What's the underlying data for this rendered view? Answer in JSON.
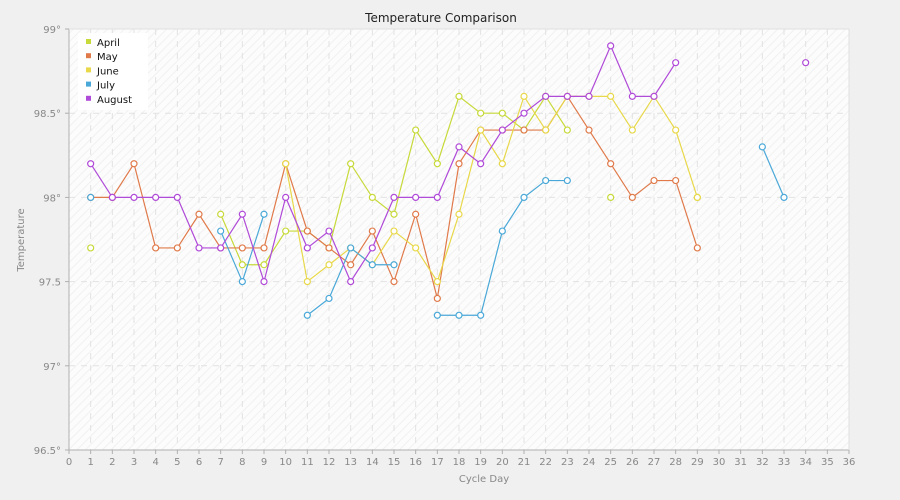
{
  "chart_data": {
    "type": "line",
    "title": "Temperature Comparison",
    "xlabel": "Cycle Day",
    "ylabel": "Temperature",
    "xlim": [
      0,
      36
    ],
    "ylim": [
      96.5,
      99
    ],
    "x_ticks": [
      0,
      1,
      2,
      3,
      4,
      5,
      6,
      7,
      8,
      9,
      10,
      11,
      12,
      13,
      14,
      15,
      16,
      17,
      18,
      19,
      20,
      21,
      22,
      23,
      24,
      25,
      26,
      27,
      28,
      29,
      30,
      31,
      32,
      33,
      34,
      35,
      36
    ],
    "y_ticks": [
      {
        "value": 96.5,
        "label": "96.5°"
      },
      {
        "value": 97,
        "label": "97°"
      },
      {
        "value": 97.5,
        "label": "97.5"
      },
      {
        "value": 98,
        "label": "98°"
      },
      {
        "value": 98.5,
        "label": "98.5°"
      },
      {
        "value": 99,
        "label": "99°"
      }
    ],
    "grid": true,
    "legend_position": "top-left",
    "series": [
      {
        "name": "April",
        "color": "#c8d93a",
        "points": [
          [
            1,
            97.7
          ],
          null,
          [
            7,
            97.9
          ],
          [
            8,
            97.6
          ],
          [
            9,
            97.6
          ],
          [
            10,
            97.8
          ],
          [
            11,
            97.8
          ],
          [
            12,
            97.7
          ],
          [
            13,
            98.2
          ],
          [
            14,
            98.0
          ],
          [
            15,
            97.9
          ],
          [
            16,
            98.4
          ],
          [
            17,
            98.2
          ],
          [
            18,
            98.6
          ],
          [
            19,
            98.5
          ],
          [
            20,
            98.5
          ],
          [
            21,
            98.4
          ],
          [
            22,
            98.6
          ],
          [
            23,
            98.4
          ],
          null,
          [
            25,
            98.0
          ],
          null,
          [
            29,
            98.0
          ]
        ]
      },
      {
        "name": "May",
        "color": "#e07a4a",
        "points": [
          [
            1,
            98.0
          ],
          [
            2,
            98.0
          ],
          [
            3,
            98.2
          ],
          [
            4,
            97.7
          ],
          [
            5,
            97.7
          ],
          [
            6,
            97.9
          ],
          [
            7,
            97.7
          ],
          [
            8,
            97.7
          ],
          [
            9,
            97.7
          ],
          [
            10,
            98.2
          ],
          [
            11,
            97.8
          ],
          [
            12,
            97.7
          ],
          [
            13,
            97.6
          ],
          [
            14,
            97.8
          ],
          [
            15,
            97.5
          ],
          [
            16,
            97.9
          ],
          [
            17,
            97.4
          ],
          [
            18,
            98.2
          ],
          [
            19,
            98.4
          ],
          [
            20,
            98.4
          ],
          [
            21,
            98.4
          ],
          [
            22,
            98.4
          ],
          [
            23,
            98.6
          ],
          [
            24,
            98.4
          ],
          [
            25,
            98.2
          ],
          [
            26,
            98.0
          ],
          [
            27,
            98.1
          ],
          [
            28,
            98.1
          ],
          [
            29,
            97.7
          ]
        ]
      },
      {
        "name": "June",
        "color": "#e8d84a",
        "points": [
          [
            10,
            98.2
          ],
          [
            11,
            97.5
          ],
          [
            12,
            97.6
          ],
          [
            13,
            97.7
          ],
          [
            14,
            97.6
          ],
          [
            15,
            97.8
          ],
          [
            16,
            97.7
          ],
          [
            17,
            97.5
          ],
          [
            18,
            97.9
          ],
          [
            19,
            98.4
          ],
          [
            20,
            98.2
          ],
          [
            21,
            98.6
          ],
          [
            22,
            98.4
          ],
          [
            23,
            98.6
          ],
          [
            24,
            98.6
          ],
          [
            25,
            98.6
          ],
          [
            26,
            98.4
          ],
          [
            27,
            98.6
          ],
          [
            28,
            98.4
          ],
          [
            29,
            98.0
          ]
        ]
      },
      {
        "name": "July",
        "color": "#4aa8d8",
        "points": [
          [
            1,
            98.0
          ],
          null,
          [
            7,
            97.8
          ],
          [
            8,
            97.5
          ],
          [
            9,
            97.9
          ],
          null,
          [
            11,
            97.3
          ],
          [
            12,
            97.4
          ],
          [
            13,
            97.7
          ],
          [
            14,
            97.6
          ],
          [
            15,
            97.6
          ],
          null,
          [
            17,
            97.3
          ],
          [
            18,
            97.3
          ],
          [
            19,
            97.3
          ],
          [
            20,
            97.8
          ],
          [
            21,
            98.0
          ],
          [
            22,
            98.1
          ],
          [
            23,
            98.1
          ],
          null,
          [
            32,
            98.3
          ],
          [
            33,
            98.0
          ]
        ]
      },
      {
        "name": "August",
        "color": "#b04ad8",
        "points": [
          [
            1,
            98.2
          ],
          [
            2,
            98.0
          ],
          [
            3,
            98.0
          ],
          [
            4,
            98.0
          ],
          [
            5,
            98.0
          ],
          [
            6,
            97.7
          ],
          [
            7,
            97.7
          ],
          [
            8,
            97.9
          ],
          [
            9,
            97.5
          ],
          [
            10,
            98.0
          ],
          [
            11,
            97.7
          ],
          [
            12,
            97.8
          ],
          [
            13,
            97.5
          ],
          [
            14,
            97.7
          ],
          [
            15,
            98.0
          ],
          [
            16,
            98.0
          ],
          [
            17,
            98.0
          ],
          [
            18,
            98.3
          ],
          [
            19,
            98.2
          ],
          [
            20,
            98.4
          ],
          [
            21,
            98.5
          ],
          [
            22,
            98.6
          ],
          [
            23,
            98.6
          ],
          [
            24,
            98.6
          ],
          [
            25,
            98.9
          ],
          [
            26,
            98.6
          ],
          [
            27,
            98.6
          ],
          [
            28,
            98.8
          ],
          null,
          [
            34,
            98.8
          ]
        ]
      }
    ]
  }
}
